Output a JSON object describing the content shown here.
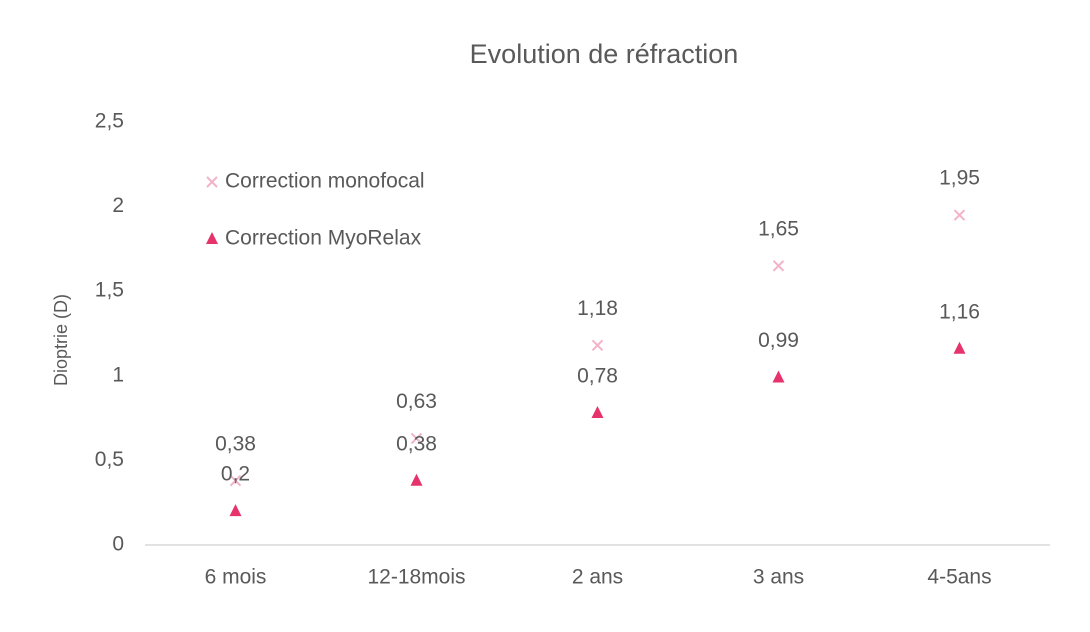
{
  "chart_data": {
    "type": "scatter",
    "title": "Evolution de réfraction",
    "y_label": "Dioptrie (D)",
    "categories": [
      "6 mois",
      "12-18mois",
      "2 ans",
      "3 ans",
      "4-5ans"
    ],
    "series": [
      {
        "name": "Correction monofocal",
        "color": "#f2b3c6",
        "marker": "x",
        "values": [
          0.38,
          0.63,
          1.18,
          1.65,
          1.95
        ],
        "value_labels": [
          "0,38",
          "0,63",
          "1,18",
          "1,65",
          "1,95"
        ]
      },
      {
        "name": "Correction MyoRelax",
        "color": "#e6336c",
        "marker": "triangle",
        "values": [
          0.2,
          0.38,
          0.78,
          0.99,
          1.16
        ],
        "value_labels": [
          "0,2",
          "0,38",
          "0,78",
          "0,99",
          "1,16"
        ]
      }
    ],
    "ylim": [
      0,
      2.5
    ],
    "yticks": [
      0,
      {
        "value": 0.5,
        "label": "0,5"
      },
      1,
      {
        "value": 1.5,
        "label": "1,5"
      },
      2,
      {
        "value": 2.5,
        "label": "2,5"
      }
    ],
    "grid": false,
    "legend": "upper left"
  }
}
